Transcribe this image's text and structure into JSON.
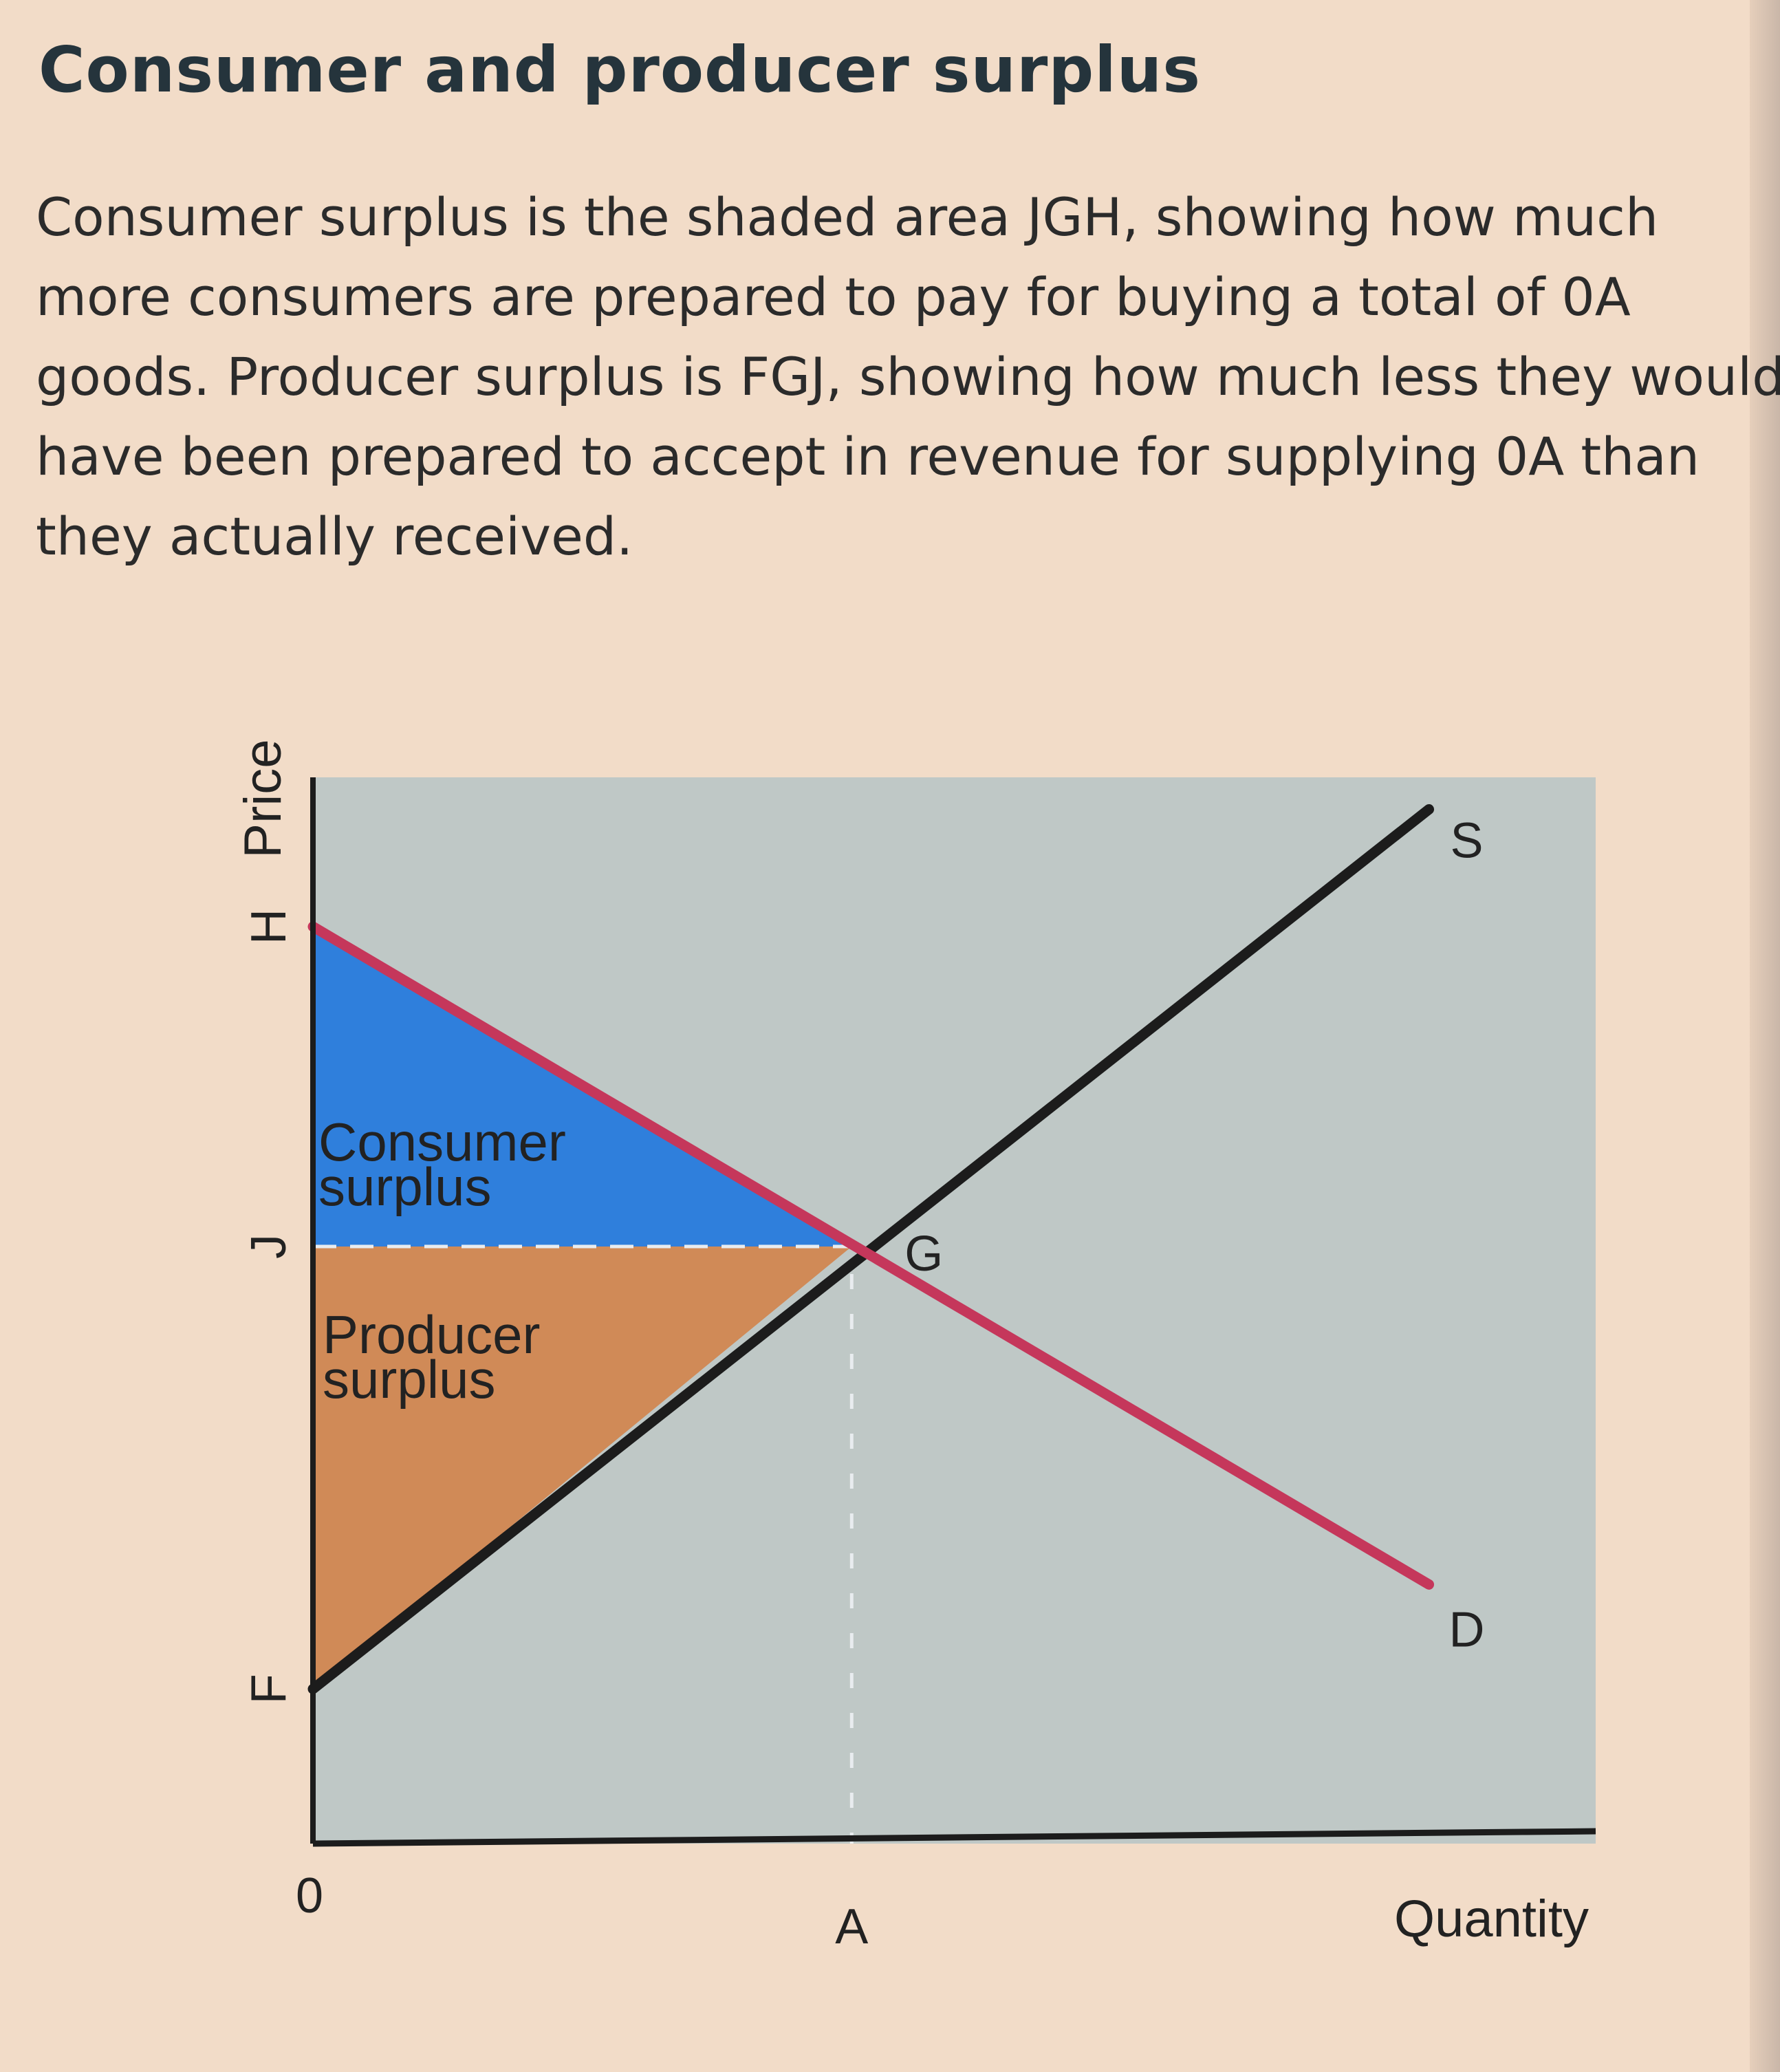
{
  "heading": "Consumer and producer surplus",
  "paragraph": [
    "Consumer surplus is the shaded area JGH, showing how much",
    "more consumers are prepared to pay for buying a total of 0A",
    "goods. Producer surplus is FGJ, showing how much less they would",
    "have been prepared to accept in revenue for supplying 0A than",
    "they actually received."
  ],
  "chart_data": {
    "type": "line",
    "xlabel": "Quantity",
    "ylabel": "Price",
    "origin_label": "0",
    "xlim": [
      0,
      1
    ],
    "ylim": [
      0,
      1
    ],
    "grid": false,
    "series": [
      {
        "name": "S",
        "color": "#1c1c1c",
        "points": [
          [
            0,
            0.145
          ],
          [
            0.87,
            0.97
          ]
        ]
      },
      {
        "name": "D",
        "color": "#c5375b",
        "points": [
          [
            0,
            0.86
          ],
          [
            0.87,
            0.243
          ]
        ]
      }
    ],
    "price_ticks": [
      {
        "label": "H",
        "y": 0.86
      },
      {
        "label": "J",
        "y": 0.56
      },
      {
        "label": "F",
        "y": 0.145
      }
    ],
    "quantity_ticks": [
      {
        "label": "A",
        "x": 0.42
      }
    ],
    "equilibrium": {
      "label": "G",
      "x": 0.42,
      "y": 0.56
    },
    "regions": [
      {
        "name": "Consumer surplus",
        "lines": [
          "Consumer",
          "surplus"
        ],
        "color": "#2f7fdc",
        "vertices": [
          "J",
          "G",
          "H"
        ]
      },
      {
        "name": "Producer surplus",
        "lines": [
          "Producer",
          "surplus"
        ],
        "color": "#d08a57",
        "vertices": [
          "F",
          "G",
          "J"
        ]
      }
    ],
    "colors": {
      "plot_background": "#bfc8c6",
      "axis": "#1c1c1c",
      "guide": "#e8ecef"
    }
  }
}
